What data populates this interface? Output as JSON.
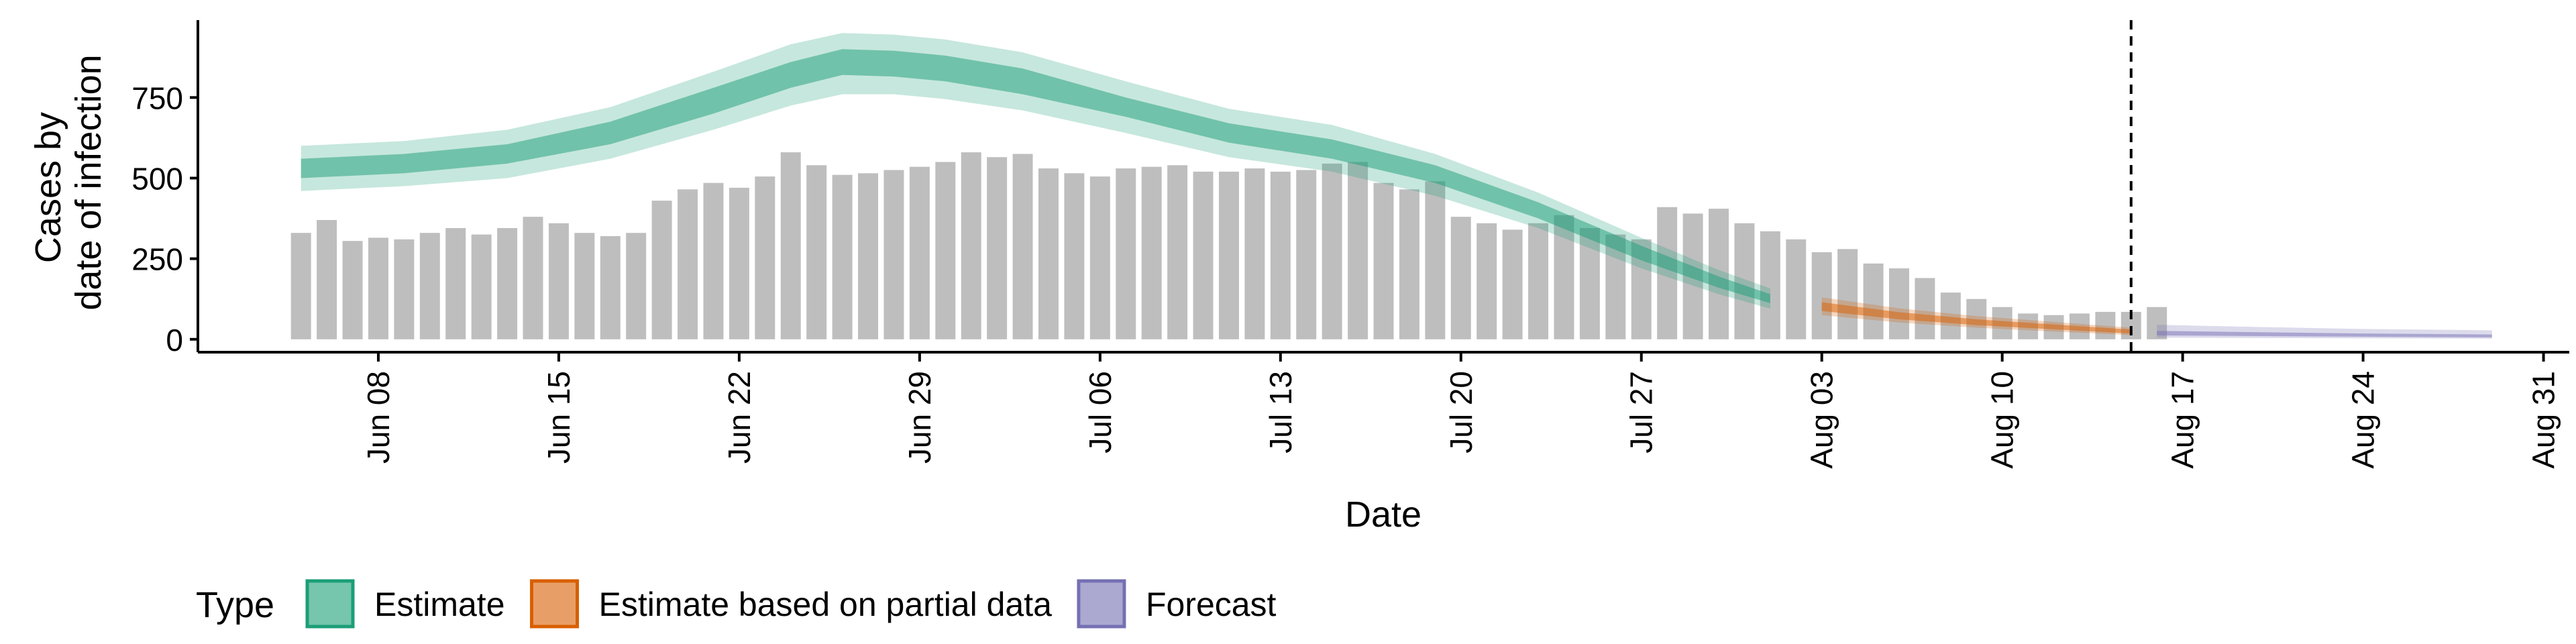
{
  "chart_data": {
    "type": "bar",
    "xlabel": "Date",
    "ylabel_lines": [
      "Cases by",
      "date of infection"
    ],
    "y_ticks": [
      0,
      250,
      500,
      750
    ],
    "ylim": [
      -40,
      990
    ],
    "xlim": [
      "2020-06-01",
      "2020-09-01"
    ],
    "x_ticks": [
      {
        "date": "2020-06-08",
        "label": "Jun 08"
      },
      {
        "date": "2020-06-15",
        "label": "Jun 15"
      },
      {
        "date": "2020-06-22",
        "label": "Jun 22"
      },
      {
        "date": "2020-06-29",
        "label": "Jun 29"
      },
      {
        "date": "2020-07-06",
        "label": "Jul 06"
      },
      {
        "date": "2020-07-13",
        "label": "Jul 13"
      },
      {
        "date": "2020-07-20",
        "label": "Jul 20"
      },
      {
        "date": "2020-07-27",
        "label": "Jul 27"
      },
      {
        "date": "2020-08-03",
        "label": "Aug 03"
      },
      {
        "date": "2020-08-10",
        "label": "Aug 10"
      },
      {
        "date": "2020-08-17",
        "label": "Aug 17"
      },
      {
        "date": "2020-08-24",
        "label": "Aug 24"
      },
      {
        "date": "2020-08-31",
        "label": "Aug 31"
      }
    ],
    "bars": {
      "start_date": "2020-06-05",
      "color": "#bebebe",
      "values": [
        330,
        370,
        305,
        315,
        310,
        330,
        345,
        325,
        345,
        380,
        360,
        330,
        320,
        330,
        430,
        465,
        485,
        470,
        505,
        580,
        540,
        510,
        515,
        525,
        535,
        550,
        580,
        565,
        575,
        530,
        515,
        505,
        530,
        535,
        540,
        520,
        520,
        530,
        520,
        525,
        545,
        550,
        485,
        465,
        490,
        380,
        360,
        340,
        360,
        385,
        345,
        325,
        310,
        410,
        390,
        405,
        360,
        335,
        310,
        270,
        280,
        235,
        220,
        190,
        145,
        125,
        100,
        80,
        75,
        80,
        85,
        85,
        100
      ]
    },
    "forecast_date": "2020-08-15",
    "series": [
      {
        "name": "Estimate",
        "color": "#1b9e77",
        "start_date": "2020-06-05",
        "points": [
          {
            "o": 0,
            "median": 530,
            "inner": [
              500,
              560
            ],
            "outer": [
              460,
              600
            ]
          },
          {
            "o": 4,
            "median": 545,
            "inner": [
              515,
              575
            ],
            "outer": [
              475,
              615
            ]
          },
          {
            "o": 8,
            "median": 575,
            "inner": [
              545,
              605
            ],
            "outer": [
              500,
              650
            ]
          },
          {
            "o": 12,
            "median": 640,
            "inner": [
              605,
              675
            ],
            "outer": [
              560,
              720
            ]
          },
          {
            "o": 16,
            "median": 740,
            "inner": [
              700,
              780
            ],
            "outer": [
              650,
              830
            ]
          },
          {
            "o": 19,
            "median": 820,
            "inner": [
              780,
              860
            ],
            "outer": [
              725,
              915
            ]
          },
          {
            "o": 21,
            "median": 860,
            "inner": [
              820,
              900
            ],
            "outer": [
              760,
              950
            ]
          },
          {
            "o": 23,
            "median": 855,
            "inner": [
              815,
              895
            ],
            "outer": [
              760,
              945
            ]
          },
          {
            "o": 25,
            "median": 840,
            "inner": [
              800,
              880
            ],
            "outer": [
              745,
              930
            ]
          },
          {
            "o": 28,
            "median": 800,
            "inner": [
              760,
              840
            ],
            "outer": [
              710,
              890
            ]
          },
          {
            "o": 32,
            "median": 720,
            "inner": [
              690,
              750
            ],
            "outer": [
              640,
              800
            ]
          },
          {
            "o": 36,
            "median": 640,
            "inner": [
              610,
              670
            ],
            "outer": [
              565,
              715
            ]
          },
          {
            "o": 40,
            "median": 590,
            "inner": [
              560,
              620
            ],
            "outer": [
              520,
              665
            ]
          },
          {
            "o": 44,
            "median": 510,
            "inner": [
              485,
              540
            ],
            "outer": [
              445,
              575
            ]
          },
          {
            "o": 48,
            "median": 400,
            "inner": [
              375,
              425
            ],
            "outer": [
              345,
              455
            ]
          },
          {
            "o": 52,
            "median": 265,
            "inner": [
              245,
              290
            ],
            "outer": [
              220,
              315
            ]
          },
          {
            "o": 55,
            "median": 175,
            "inner": [
              160,
              195
            ],
            "outer": [
              140,
              215
            ]
          },
          {
            "o": 57,
            "median": 125,
            "inner": [
              112,
              140
            ],
            "outer": [
              95,
              158
            ]
          }
        ]
      },
      {
        "name": "Estimate based on partial data",
        "color": "#d95f02",
        "start_date": "2020-08-03",
        "points": [
          {
            "o": 0,
            "median": 100,
            "inner": [
              88,
              115
            ],
            "outer": [
              75,
              130
            ]
          },
          {
            "o": 3,
            "median": 72,
            "inner": [
              62,
              84
            ],
            "outer": [
              52,
              96
            ]
          },
          {
            "o": 6,
            "median": 52,
            "inner": [
              44,
              62
            ],
            "outer": [
              36,
              72
            ]
          },
          {
            "o": 9,
            "median": 38,
            "inner": [
              31,
              46
            ],
            "outer": [
              24,
              54
            ]
          },
          {
            "o": 12,
            "median": 24,
            "inner": [
              18,
              30
            ],
            "outer": [
              13,
              36
            ]
          }
        ]
      },
      {
        "name": "Forecast",
        "color": "#7570b3",
        "start_date": "2020-08-16",
        "points": [
          {
            "o": 0,
            "median": 18,
            "inner": [
              12,
              26
            ],
            "outer": [
              5,
              45
            ]
          },
          {
            "o": 4,
            "median": 15,
            "inner": [
              10,
              22
            ],
            "outer": [
              4,
              38
            ]
          },
          {
            "o": 8,
            "median": 12,
            "inner": [
              8,
              18
            ],
            "outer": [
              3,
              32
            ]
          },
          {
            "o": 13,
            "median": 10,
            "inner": [
              6,
              15
            ],
            "outer": [
              2,
              28
            ]
          }
        ]
      }
    ],
    "legend": {
      "title": "Type",
      "position": "bottom-left",
      "items": [
        {
          "label": "Estimate",
          "color": "#1b9e77"
        },
        {
          "label": "Estimate based on partial data",
          "color": "#d95f02"
        },
        {
          "label": "Forecast",
          "color": "#7570b3"
        }
      ]
    }
  }
}
